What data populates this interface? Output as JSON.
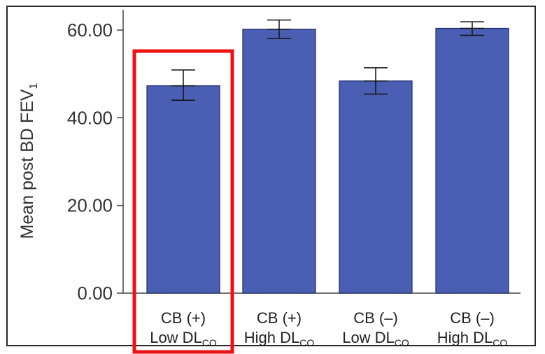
{
  "chart_data": {
    "type": "bar",
    "ylabel": "Mean post BD FEV",
    "ylabel_subscript": "1",
    "ylim": [
      0,
      60
    ],
    "yticks": [
      "0.00",
      "20.00",
      "40.00",
      "60.00"
    ],
    "categories": [
      {
        "line1": "CB (+)",
        "line2_main": "Low DL",
        "line2_sub": "CO"
      },
      {
        "line1": "CB (+)",
        "line2_main": "High DL",
        "line2_sub": "CO"
      },
      {
        "line1": "CB (–)",
        "line2_main": "Low DL",
        "line2_sub": "CO"
      },
      {
        "line1": "CB (–)",
        "line2_main": "High DL",
        "line2_sub": "CO"
      }
    ],
    "values": [
      47.3,
      60.2,
      48.4,
      60.4
    ],
    "error_low": [
      44.0,
      58.1,
      45.4,
      58.8
    ],
    "error_high": [
      50.9,
      62.3,
      51.4,
      61.9
    ],
    "bar_color": "#4a5fb3",
    "highlight_category_index": 0,
    "highlight_color": "#ee1111",
    "grid": false,
    "legend": "none"
  }
}
